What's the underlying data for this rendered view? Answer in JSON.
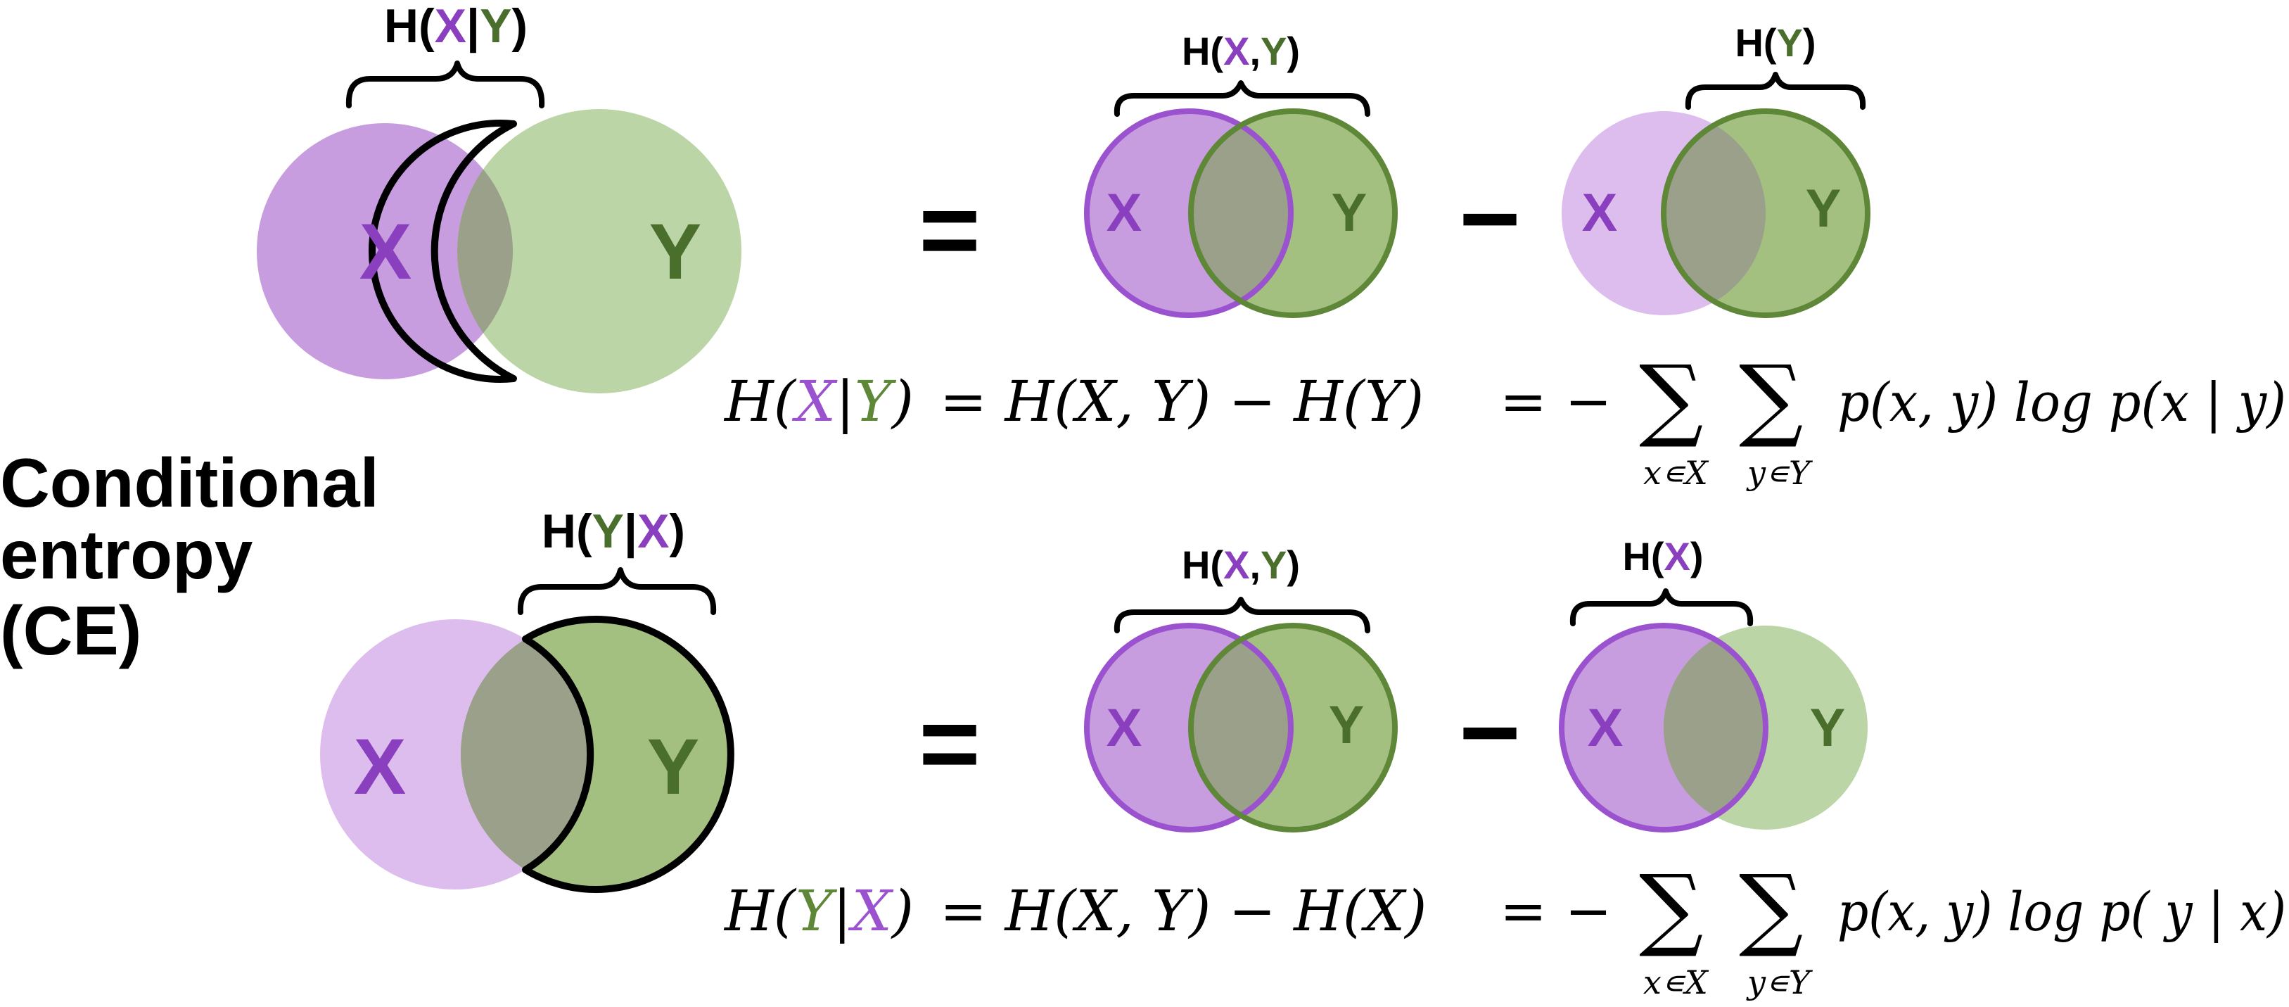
{
  "title": {
    "line1": "Conditional",
    "line2": "entropy",
    "line3": "(CE)"
  },
  "colors": {
    "purple_text": "#8a3fbf",
    "purple_fill": "#c79de0",
    "purple_light": "#ddbdee",
    "purple_stroke": "#9b52cf",
    "green_text": "#4a6f2c",
    "green_fill": "#a4c081",
    "green_light": "#bcd5a6",
    "green_stroke": "#5e8738",
    "overlap": "#9aa089",
    "black": "#000000"
  },
  "top": {
    "brace_label": {
      "h": "H(",
      "a": "X",
      "sep": "|",
      "b": "Y",
      "close": ")"
    },
    "joint_label": {
      "h": "H(",
      "a": "X",
      "sep": ",",
      "b": "Y",
      "close": ")"
    },
    "marginal_label": {
      "h": "H(",
      "a": "Y",
      "close": ")"
    },
    "circle_x": "X",
    "circle_y": "Y",
    "equals": "=",
    "minus": "−",
    "formula": {
      "lhs_h": "H(",
      "lhs_a": "X",
      "lhs_sep": "|",
      "lhs_b": "Y",
      "lhs_close": ")",
      "rhs1": "= H(X, Y) − H(Y)",
      "rhs2": "= −",
      "sum1_sub": "x∊X",
      "sum2_sub": "y∊Y",
      "sum_sign": "∑",
      "tail": "p(x, y) log p(x | y)"
    }
  },
  "bottom": {
    "brace_label": {
      "h": "H(",
      "a": "Y",
      "sep": "|",
      "b": "X",
      "close": ")"
    },
    "joint_label": {
      "h": "H(",
      "a": "X",
      "sep": ",",
      "b": "Y",
      "close": ")"
    },
    "marginal_label": {
      "h": "H(",
      "a": "X",
      "close": ")"
    },
    "circle_x": "X",
    "circle_y": "Y",
    "equals": "=",
    "minus": "−",
    "formula": {
      "lhs_h": "H(",
      "lhs_a": "Y",
      "lhs_sep": "|",
      "lhs_b": "X",
      "lhs_close": ")",
      "rhs1": "= H(X, Y) − H(X)",
      "rhs2": "= −",
      "sum1_sub": "x∊X",
      "sum2_sub": "y∊Y",
      "sum_sign": "∑",
      "tail": "p(x, y) log p( y | x)"
    }
  }
}
